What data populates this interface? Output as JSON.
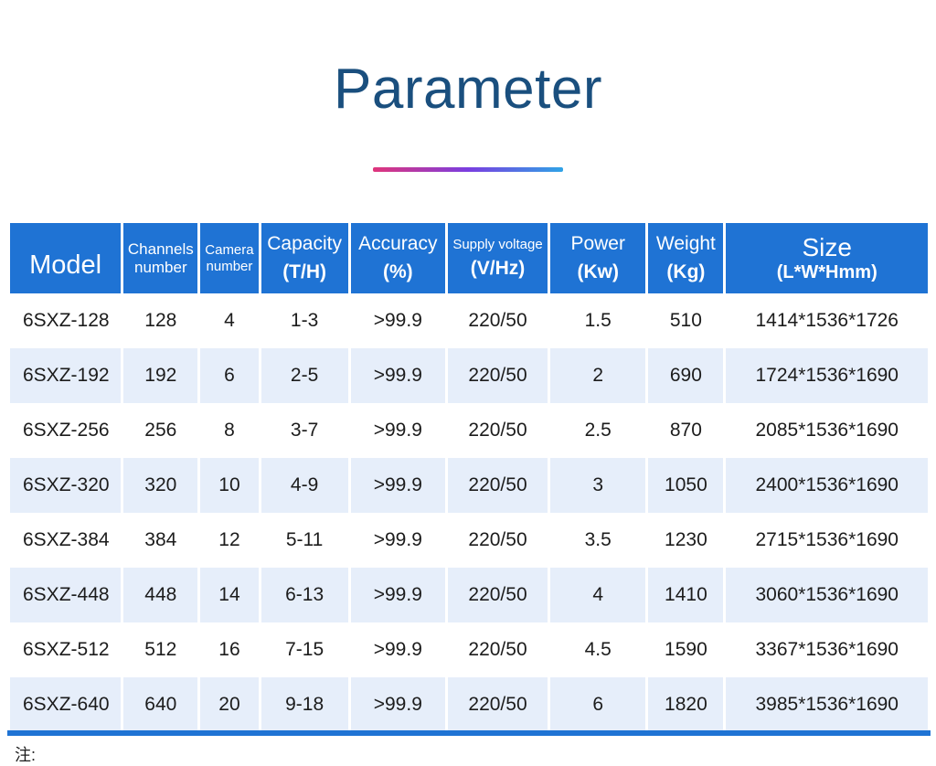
{
  "title": "Parameter",
  "headers": {
    "model": "Model",
    "channels": [
      "Channels",
      "number"
    ],
    "camera": [
      "Camera",
      "number"
    ],
    "capacity": [
      "Capacity",
      "(T/H)"
    ],
    "accuracy": [
      "Accuracy",
      "(%)"
    ],
    "voltage": [
      "Supply voltage",
      "(V/Hz)"
    ],
    "power": [
      "Power",
      "(Kw)"
    ],
    "weight": [
      "Weight",
      "(Kg)"
    ],
    "size": [
      "Size",
      "(L*W*Hmm)"
    ]
  },
  "rows": [
    [
      "6SXZ-128",
      "128",
      "4",
      "1-3",
      ">99.9",
      "220/50",
      "1.5",
      "510",
      "1414*1536*1726"
    ],
    [
      "6SXZ-192",
      "192",
      "6",
      "2-5",
      ">99.9",
      "220/50",
      "2",
      "690",
      "1724*1536*1690"
    ],
    [
      "6SXZ-256",
      "256",
      "8",
      "3-7",
      ">99.9",
      "220/50",
      "2.5",
      "870",
      "2085*1536*1690"
    ],
    [
      "6SXZ-320",
      "320",
      "10",
      "4-9",
      ">99.9",
      "220/50",
      "3",
      "1050",
      "2400*1536*1690"
    ],
    [
      "6SXZ-384",
      "384",
      "12",
      "5-11",
      ">99.9",
      "220/50",
      "3.5",
      "1230",
      "2715*1536*1690"
    ],
    [
      "6SXZ-448",
      "448",
      "14",
      "6-13",
      ">99.9",
      "220/50",
      "4",
      "1410",
      "3060*1536*1690"
    ],
    [
      "6SXZ-512",
      "512",
      "16",
      "7-15",
      ">99.9",
      "220/50",
      "4.5",
      "1590",
      "3367*1536*1690"
    ],
    [
      "6SXZ-640",
      "640",
      "20",
      "9-18",
      ">99.9",
      "220/50",
      "6",
      "1820",
      "3985*1536*1690"
    ]
  ],
  "note": "注:",
  "colors": {
    "title": "#1a4f7e",
    "header_bg": "#1f73d4",
    "row_alt": "#e6eefa",
    "gradient": [
      "#e0357b",
      "#7a3ee0",
      "#2fa3e6"
    ]
  }
}
